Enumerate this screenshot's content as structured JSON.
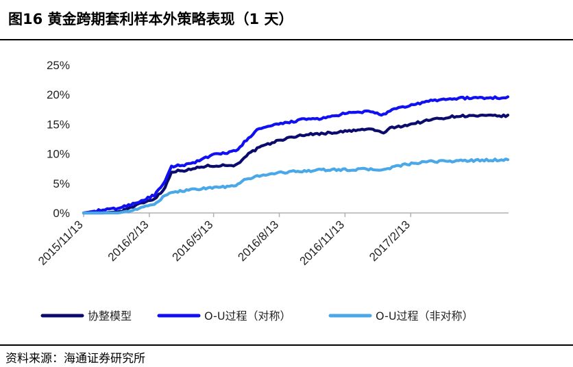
{
  "title": "图16 黄金跨期套利样本外策略表现（1 天）",
  "source": "资料来源：海通证券研究所",
  "chart_data": {
    "type": "line",
    "title": "",
    "xlabel": "",
    "ylabel": "",
    "x_range": [
      "2015-11-13",
      "2017-06-30"
    ],
    "ylim": [
      0,
      25
    ],
    "y_ticks": [
      "0%",
      "5%",
      "10%",
      "15%",
      "20%",
      "25%"
    ],
    "x_ticks": [
      "2015/11/13",
      "2016/2/13",
      "2016/5/13",
      "2016/8/13",
      "2016/11/13",
      "2017/2/13"
    ],
    "grid": false,
    "legend_position": "bottom",
    "series": [
      {
        "name": "协整模型",
        "color": "#0b0b6e",
        "points": [
          [
            "2015-11-13",
            0.0
          ],
          [
            "2015-12-10",
            0.0
          ],
          [
            "2016-01-01",
            0.2
          ],
          [
            "2016-01-20",
            1.0
          ],
          [
            "2016-02-05",
            1.8
          ],
          [
            "2016-02-20",
            2.4
          ],
          [
            "2016-03-05",
            4.0
          ],
          [
            "2016-03-15",
            7.0
          ],
          [
            "2016-04-10",
            7.3
          ],
          [
            "2016-04-25",
            7.8
          ],
          [
            "2016-05-10",
            8.0
          ],
          [
            "2016-06-15",
            8.1
          ],
          [
            "2016-06-25",
            9.5
          ],
          [
            "2016-07-15",
            11.0
          ],
          [
            "2016-08-13",
            12.3
          ],
          [
            "2016-09-15",
            13.2
          ],
          [
            "2016-10-20",
            13.5
          ],
          [
            "2016-11-15",
            13.8
          ],
          [
            "2016-12-20",
            14.2
          ],
          [
            "2017-01-05",
            13.5
          ],
          [
            "2017-01-15",
            14.3
          ],
          [
            "2017-02-13",
            15.0
          ],
          [
            "2017-03-15",
            15.8
          ],
          [
            "2017-04-20",
            16.4
          ],
          [
            "2017-06-30",
            16.4
          ]
        ]
      },
      {
        "name": "O-U过程（对称）",
        "color": "#1010f0",
        "points": [
          [
            "2015-11-13",
            0.0
          ],
          [
            "2015-11-28",
            0.3
          ],
          [
            "2016-01-01",
            0.8
          ],
          [
            "2016-01-20",
            1.5
          ],
          [
            "2016-02-05",
            2.2
          ],
          [
            "2016-02-20",
            3.0
          ],
          [
            "2016-03-05",
            5.0
          ],
          [
            "2016-03-15",
            7.8
          ],
          [
            "2016-04-10",
            8.3
          ],
          [
            "2016-04-25",
            9.0
          ],
          [
            "2016-05-13",
            9.8
          ],
          [
            "2016-06-15",
            10.5
          ],
          [
            "2016-06-25",
            12.0
          ],
          [
            "2016-07-15",
            14.2
          ],
          [
            "2016-08-13",
            15.0
          ],
          [
            "2016-09-15",
            15.8
          ],
          [
            "2016-10-15",
            16.0
          ],
          [
            "2016-11-13",
            16.8
          ],
          [
            "2016-12-20",
            17.2
          ],
          [
            "2017-01-05",
            16.5
          ],
          [
            "2017-01-20",
            17.5
          ],
          [
            "2017-02-13",
            18.2
          ],
          [
            "2017-03-15",
            19.0
          ],
          [
            "2017-04-20",
            19.4
          ],
          [
            "2017-06-30",
            19.5
          ]
        ]
      },
      {
        "name": "O-U过程（非对称）",
        "color": "#4aa8e8",
        "points": [
          [
            "2015-11-13",
            0.0
          ],
          [
            "2016-01-01",
            0.0
          ],
          [
            "2016-02-01",
            0.8
          ],
          [
            "2016-02-20",
            1.5
          ],
          [
            "2016-03-05",
            2.8
          ],
          [
            "2016-03-20",
            3.6
          ],
          [
            "2016-04-15",
            4.0
          ],
          [
            "2016-05-13",
            4.3
          ],
          [
            "2016-06-10",
            4.5
          ],
          [
            "2016-06-25",
            5.5
          ],
          [
            "2016-07-15",
            6.3
          ],
          [
            "2016-08-13",
            6.8
          ],
          [
            "2016-09-15",
            7.1
          ],
          [
            "2016-10-20",
            7.3
          ],
          [
            "2016-11-13",
            7.3
          ],
          [
            "2016-12-20",
            7.4
          ],
          [
            "2017-01-05",
            7.2
          ],
          [
            "2017-01-20",
            7.8
          ],
          [
            "2017-02-13",
            8.3
          ],
          [
            "2017-03-15",
            8.7
          ],
          [
            "2017-06-30",
            9.0
          ]
        ]
      }
    ]
  }
}
